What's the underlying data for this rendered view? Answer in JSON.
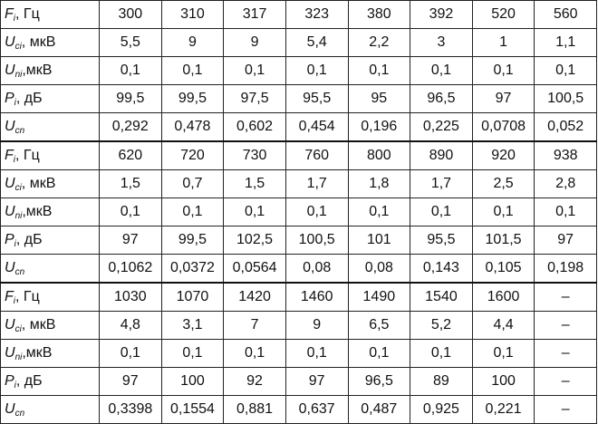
{
  "table": {
    "blocks": [
      {
        "rows": [
          {
            "label": {
              "main": "F",
              "sub": "i",
              "unit": ", Гц"
            },
            "values": [
              "300",
              "310",
              "317",
              "323",
              "380",
              "392",
              "520",
              "560"
            ]
          },
          {
            "label": {
              "main": "U",
              "sub": "ci",
              "unit": ", мкВ"
            },
            "values": [
              "5,5",
              "9",
              "9",
              "5,4",
              "2,2",
              "3",
              "1",
              "1,1"
            ]
          },
          {
            "label": {
              "main": "U",
              "sub": "ni",
              "unit": ",мкВ"
            },
            "values": [
              "0,1",
              "0,1",
              "0,1",
              "0,1",
              "0,1",
              "0,1",
              "0,1",
              "0,1"
            ]
          },
          {
            "label": {
              "main": "P",
              "sub": "i",
              "unit": ", дБ"
            },
            "values": [
              "99,5",
              "99,5",
              "97,5",
              "95,5",
              "95",
              "96,5",
              "97",
              "100,5"
            ]
          },
          {
            "label": {
              "main": "U",
              "sub": "cn"
            },
            "values": [
              "0,292",
              "0,478",
              "0,602",
              "0,454",
              "0,196",
              "0,225",
              "0,0708",
              "0,052"
            ]
          }
        ]
      },
      {
        "rows": [
          {
            "label": {
              "main": "F",
              "sub": "i",
              "unit": ", Гц"
            },
            "values": [
              "620",
              "720",
              "730",
              "760",
              "800",
              "890",
              "920",
              "938"
            ]
          },
          {
            "label": {
              "main": "U",
              "sub": "ci",
              "unit": ", мкВ"
            },
            "values": [
              "1,5",
              "0,7",
              "1,5",
              "1,7",
              "1,8",
              "1,7",
              "2,5",
              "2,8"
            ]
          },
          {
            "label": {
              "main": "U",
              "sub": "ni",
              "unit": ",мкВ"
            },
            "values": [
              "0,1",
              "0,1",
              "0,1",
              "0,1",
              "0,1",
              "0,1",
              "0,1",
              "0,1"
            ]
          },
          {
            "label": {
              "main": "P",
              "sub": "i",
              "unit": ", дБ"
            },
            "values": [
              "97",
              "99,5",
              "102,5",
              "100,5",
              "101",
              "95,5",
              "101,5",
              "97"
            ]
          },
          {
            "label": {
              "main": "U",
              "sub": "cn"
            },
            "values": [
              "0,1062",
              "0,0372",
              "0,0564",
              "0,08",
              "0,08",
              "0,143",
              "0,105",
              "0,198"
            ]
          }
        ]
      },
      {
        "rows": [
          {
            "label": {
              "main": "F",
              "sub": "i",
              "unit": ", Гц"
            },
            "values": [
              "1030",
              "1070",
              "1420",
              "1460",
              "1490",
              "1540",
              "1600",
              "–"
            ]
          },
          {
            "label": {
              "main": "U",
              "sub": "ci",
              "unit": ", мкВ"
            },
            "values": [
              "4,8",
              "3,1",
              "7",
              "9",
              "6,5",
              "5,2",
              "4,4",
              "–"
            ]
          },
          {
            "label": {
              "main": "U",
              "sub": "ni",
              "unit": ",мкВ"
            },
            "values": [
              "0,1",
              "0,1",
              "0,1",
              "0,1",
              "0,1",
              "0,1",
              "0,1",
              "–"
            ]
          },
          {
            "label": {
              "main": "P",
              "sub": "i",
              "unit": ", дБ"
            },
            "values": [
              "97",
              "100",
              "92",
              "97",
              "96,5",
              "89",
              "100",
              "–"
            ]
          },
          {
            "label": {
              "main": "U",
              "sub": "cn"
            },
            "values": [
              "0,3398",
              "0,1554",
              "0,881",
              "0,637",
              "0,487",
              "0,925",
              "0,221",
              "–"
            ]
          }
        ]
      }
    ]
  }
}
